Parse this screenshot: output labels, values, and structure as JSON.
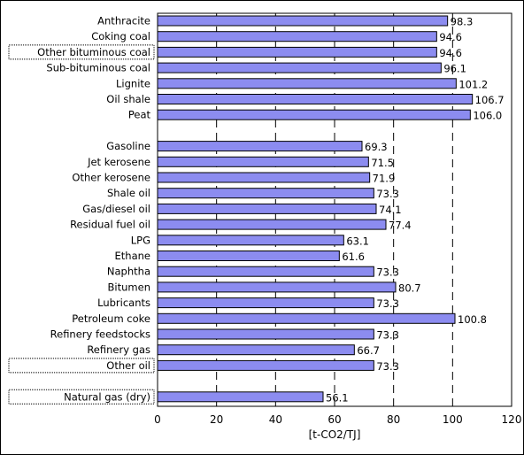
{
  "chart_data": {
    "type": "bar",
    "orientation": "horizontal",
    "xlabel": "[t-CO2/TJ]",
    "xlim": [
      0,
      120
    ],
    "xticks": [
      "0",
      "20",
      "40",
      "60",
      "80",
      "100",
      "120"
    ],
    "grid": "dashed vertical lines at 20, 40, 60, 80, 100",
    "bar_color": "#8c8cf0",
    "bar_edge_color": "#000000",
    "categories": [
      "Anthracite",
      "Coking coal",
      "Other bituminous coal",
      "Sub-bituminous coal",
      "Lignite",
      "Oil shale",
      "Peat",
      "",
      "Gasoline",
      "Jet kerosene",
      "Other kerosene",
      "Shale oil",
      "Gas/diesel oil",
      "Residual fuel oil",
      "LPG",
      "Ethane",
      "Naphtha",
      "Bitumen",
      "Lubricants",
      "Petroleum coke",
      "Refinery feedstocks",
      "Refinery gas",
      "Other oil",
      "",
      "Natural gas (dry)"
    ],
    "values": [
      98.3,
      94.6,
      94.6,
      96.1,
      101.2,
      106.7,
      106.0,
      null,
      69.3,
      71.5,
      71.9,
      73.3,
      74.1,
      77.4,
      63.1,
      61.6,
      73.3,
      80.7,
      73.3,
      100.8,
      73.3,
      66.7,
      73.3,
      null,
      56.1
    ],
    "value_labels": [
      "98.3",
      "94.6",
      "94.6",
      "96.1",
      "101.2",
      "106.7",
      "106.0",
      "",
      "69.3",
      "71.5",
      "71.9",
      "73.3",
      "74.1",
      "77.4",
      "63.1",
      "61.6",
      "73.3",
      "80.7",
      "73.3",
      "100.8",
      "73.3",
      "66.7",
      "73.3",
      "",
      "56.1"
    ],
    "boxed_categories": [
      "Other bituminous coal",
      "Other oil",
      "Natural gas (dry)"
    ]
  }
}
